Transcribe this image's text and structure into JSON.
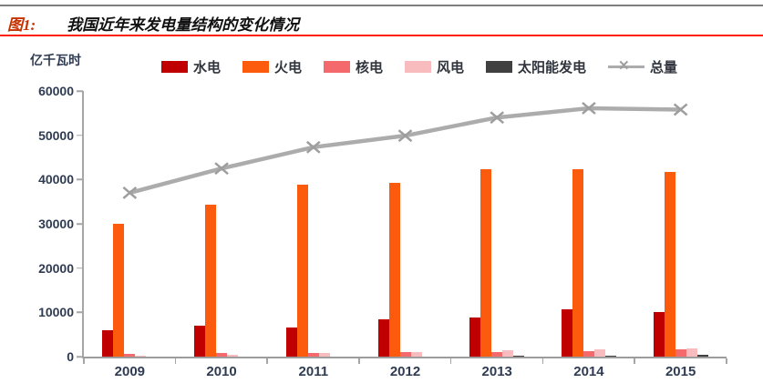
{
  "header": {
    "fig_label": "图1:",
    "title": "我国近年来发电量结构的变化情况"
  },
  "theme": {
    "accent": "#C53200",
    "rule_red": "#FF2000",
    "rule_gray": "#7F7F7F",
    "axis_text": "#2F3B52",
    "axis_line": "#A6A6A6",
    "line_color": "#ACACAC",
    "marker_color": "#9E9E9E"
  },
  "chart_data": {
    "type": "bar",
    "title": "我国近年来发电量结构的变化情况",
    "ylabel": "亿千瓦时",
    "xlabel": "",
    "ylim": [
      0,
      60000
    ],
    "ytick_step": 10000,
    "grid": false,
    "legend_position": "top",
    "categories": [
      "2009",
      "2010",
      "2011",
      "2012",
      "2013",
      "2014",
      "2015"
    ],
    "series": [
      {
        "key": "hydro",
        "name": "水电",
        "type": "bar",
        "color": "#C00000",
        "values": [
          5900,
          6900,
          6600,
          8500,
          8900,
          10600,
          10000
        ]
      },
      {
        "key": "thermal",
        "name": "火电",
        "type": "bar",
        "color": "#FC5A0D",
        "values": [
          30000,
          34300,
          38900,
          39300,
          42300,
          42400,
          41700
        ]
      },
      {
        "key": "nuclear",
        "name": "核电",
        "type": "bar",
        "color": "#F4696B",
        "values": [
          700,
          750,
          870,
          980,
          1100,
          1300,
          1700
        ]
      },
      {
        "key": "wind",
        "name": "风电",
        "type": "bar",
        "color": "#F8BCBE",
        "values": [
          280,
          500,
          740,
          1030,
          1400,
          1600,
          1850
        ]
      },
      {
        "key": "solar",
        "name": "太阳能发电",
        "type": "bar",
        "color": "#404040",
        "values": [
          0,
          10,
          30,
          80,
          120,
          240,
          400
        ]
      },
      {
        "key": "total",
        "name": "总量",
        "type": "line",
        "color": "#ACACAC",
        "marker": "x",
        "values": [
          37000,
          42500,
          47300,
          49900,
          54000,
          56100,
          55800
        ]
      }
    ]
  }
}
